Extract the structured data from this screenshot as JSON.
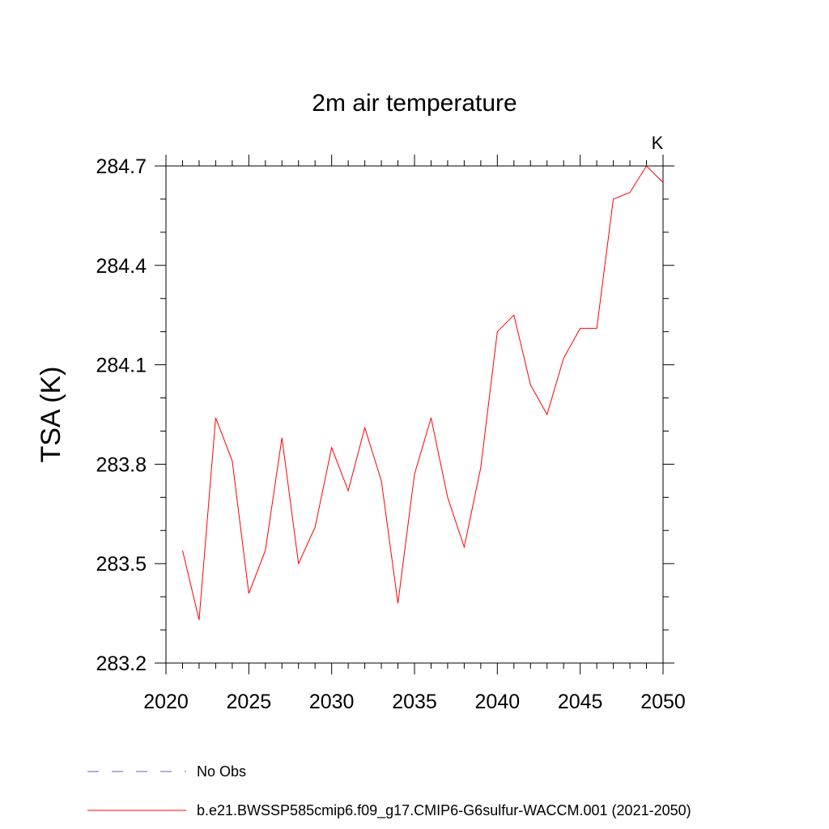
{
  "chart_data": {
    "type": "line",
    "title": "2m air temperature",
    "units_label": "K",
    "ylabel": "TSA  (K)",
    "xlabel": "",
    "xlim": [
      2020,
      2050
    ],
    "ylim": [
      283.2,
      284.7
    ],
    "x_ticks": [
      2020,
      2025,
      2030,
      2035,
      2040,
      2045,
      2050
    ],
    "y_ticks": [
      283.2,
      283.5,
      283.8,
      284.1,
      284.4,
      284.7
    ],
    "grid": false,
    "legend_position": "bottom-left",
    "series": [
      {
        "name": "b.e21.BWSSP585cmip6.f09_g17.CMIP6-G6sulfur-WACCM.001 (2021-2050)",
        "color": "#ff0000",
        "style": "solid",
        "x": [
          2021,
          2022,
          2023,
          2024,
          2025,
          2026,
          2027,
          2028,
          2029,
          2030,
          2031,
          2032,
          2033,
          2034,
          2035,
          2036,
          2037,
          2038,
          2039,
          2040,
          2041,
          2042,
          2043,
          2044,
          2045,
          2046,
          2047,
          2048,
          2049,
          2050
        ],
        "y": [
          283.54,
          283.33,
          283.94,
          283.81,
          283.41,
          283.54,
          283.88,
          283.5,
          283.61,
          283.85,
          283.72,
          283.91,
          283.75,
          283.38,
          283.77,
          283.94,
          283.7,
          283.55,
          283.79,
          284.2,
          284.25,
          284.04,
          283.95,
          284.12,
          284.21,
          284.21,
          284.6,
          284.62,
          284.7,
          284.65
        ]
      }
    ],
    "legend_entries": [
      {
        "label": "No Obs",
        "color": "#6a5acd",
        "style": "dashed"
      },
      {
        "label": "b.e21.BWSSP585cmip6.f09_g17.CMIP6-G6sulfur-WACCM.001 (2021-2050)",
        "color": "#ff0000",
        "style": "solid"
      }
    ]
  }
}
